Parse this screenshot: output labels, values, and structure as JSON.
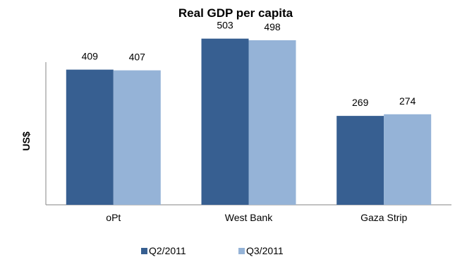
{
  "chart_data": {
    "type": "bar",
    "title": "Real GDP per capita",
    "xlabel": "",
    "ylabel": "US$",
    "categories": [
      "oPt",
      "West Bank",
      "Gaza Strip"
    ],
    "series": [
      {
        "name": "Q2/2011",
        "values": [
          409,
          503,
          269
        ],
        "color": "#375f91"
      },
      {
        "name": "Q3/2011",
        "values": [
          407,
          498,
          274
        ],
        "color": "#95b3d7"
      }
    ],
    "ylim": [
      0,
      560
    ],
    "grid": false,
    "legend_position": "bottom"
  }
}
